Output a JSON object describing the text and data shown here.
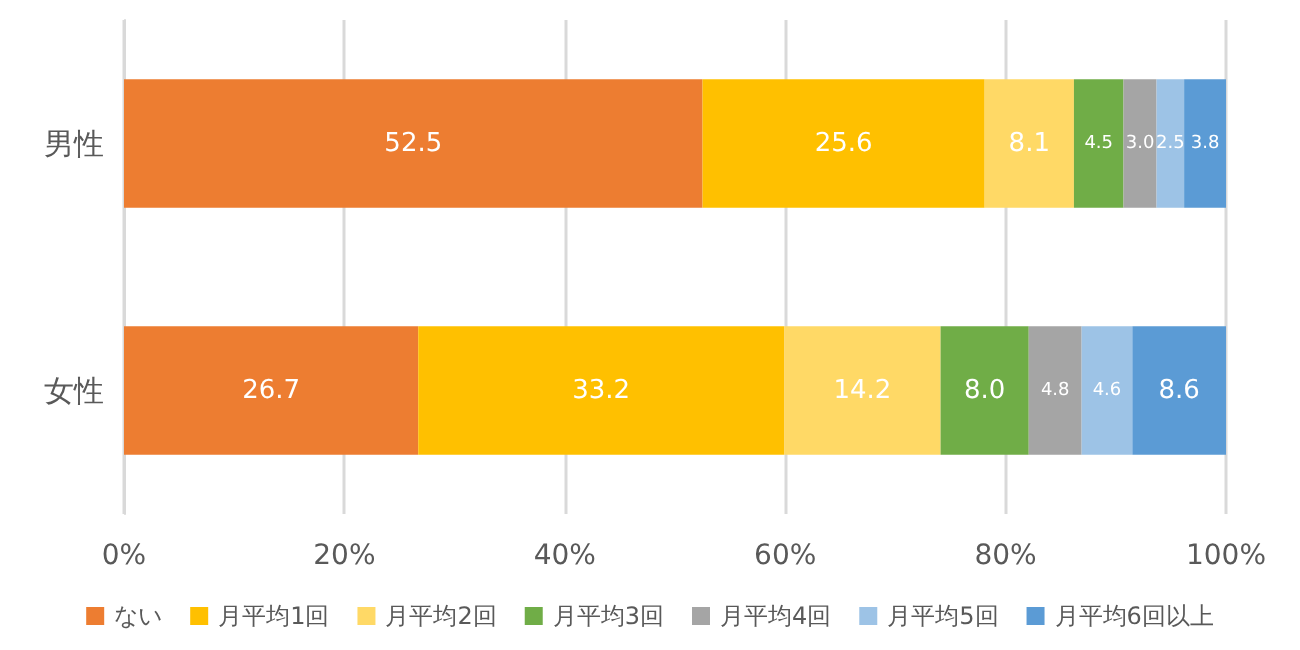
{
  "chart_data": {
    "type": "bar",
    "orientation": "horizontal",
    "stacked": true,
    "categories": [
      "男性",
      "女性"
    ],
    "series": [
      {
        "name": "ない",
        "color": "#ed7d31",
        "values": [
          52.5,
          26.7
        ],
        "value_labels": [
          "52.5",
          "26.7"
        ]
      },
      {
        "name": "月平均1回",
        "color": "#ffc000",
        "values": [
          25.6,
          33.2
        ],
        "value_labels": [
          "25.6",
          "33.2"
        ]
      },
      {
        "name": "月平均2回",
        "color": "#ffd966",
        "values": [
          8.1,
          14.2
        ],
        "value_labels": [
          "8.1",
          "14.2"
        ]
      },
      {
        "name": "月平均3回",
        "color": "#70ad47",
        "values": [
          4.5,
          8.0
        ],
        "value_labels": [
          "4.5",
          "8.0"
        ]
      },
      {
        "name": "月平均4回",
        "color": "#a5a5a5",
        "values": [
          3.0,
          4.8
        ],
        "value_labels": [
          "3.0",
          "4.8"
        ]
      },
      {
        "name": "月平均5回",
        "color": "#9dc3e6",
        "values": [
          2.5,
          4.6
        ],
        "value_labels": [
          "2.5",
          "4.6"
        ]
      },
      {
        "name": "月平均6回以上",
        "color": "#5b9bd5",
        "values": [
          3.8,
          8.6
        ],
        "value_labels": [
          "3.8",
          "8.6"
        ]
      }
    ],
    "xlim": [
      0,
      100
    ],
    "xticks": [
      {
        "value": 0,
        "label": "0%"
      },
      {
        "value": 20,
        "label": "20%"
      },
      {
        "value": 40,
        "label": "40%"
      },
      {
        "value": 60,
        "label": "60%"
      },
      {
        "value": 80,
        "label": "80%"
      },
      {
        "value": 100,
        "label": "100%"
      }
    ],
    "grid": "x",
    "legend": "bottom"
  }
}
